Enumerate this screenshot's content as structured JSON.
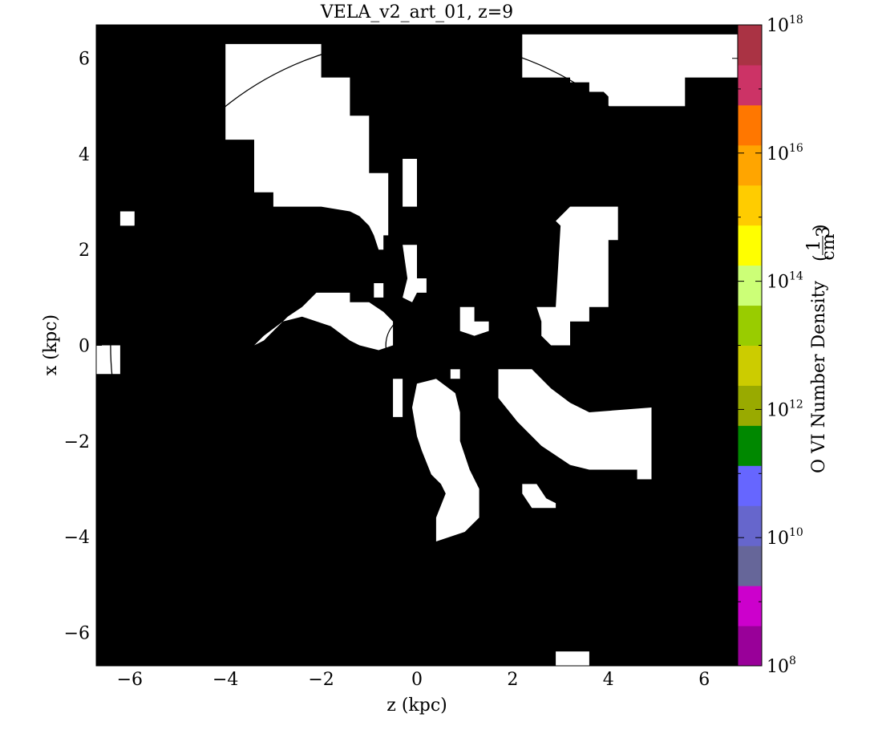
{
  "chart_data": {
    "type": "heatmap",
    "title": "VELA_v2_art_01, z=9",
    "xlabel": "z  (kpc)",
    "ylabel": "x  (kpc)",
    "xlim": [
      -6.7,
      6.7
    ],
    "ylim": [
      -6.7,
      6.7
    ],
    "x_ticks": [
      -6,
      -4,
      -2,
      0,
      2,
      4,
      6
    ],
    "y_ticks": [
      -6,
      -4,
      -2,
      0,
      2,
      4,
      6
    ],
    "x_tick_labels": [
      "−6",
      "−4",
      "−2",
      "0",
      "2",
      "4",
      "6"
    ],
    "y_tick_labels": [
      "−6",
      "−4",
      "−2",
      "0",
      "2",
      "4",
      "6"
    ],
    "background_color": "#000000",
    "region_color": "#ffffff",
    "circles": [
      {
        "cx": 0,
        "cy": 0,
        "r": 0.65
      },
      {
        "cx": 0,
        "cy": 0,
        "r": 6.4
      }
    ],
    "regions": [
      [
        [
          -4.0,
          6.3
        ],
        [
          -2.0,
          6.3
        ],
        [
          -2.0,
          5.6
        ],
        [
          -1.4,
          5.6
        ],
        [
          -1.4,
          4.8
        ],
        [
          -1.0,
          4.8
        ],
        [
          -1.0,
          3.6
        ],
        [
          -0.6,
          3.6
        ],
        [
          -0.6,
          2.3
        ],
        [
          -0.7,
          2.3
        ],
        [
          -0.7,
          2.0
        ],
        [
          -0.8,
          2.0
        ],
        [
          -0.9,
          2.3
        ],
        [
          -1.0,
          2.5
        ],
        [
          -1.2,
          2.7
        ],
        [
          -1.4,
          2.8
        ],
        [
          -2.0,
          2.9
        ],
        [
          -3.0,
          2.9
        ],
        [
          -3.0,
          3.2
        ],
        [
          -3.4,
          3.2
        ],
        [
          -3.4,
          4.3
        ],
        [
          -4.0,
          4.3
        ]
      ],
      [
        [
          2.2,
          6.5
        ],
        [
          6.7,
          6.5
        ],
        [
          6.7,
          5.6
        ],
        [
          5.6,
          5.6
        ],
        [
          5.6,
          5.0
        ],
        [
          4.0,
          5.0
        ],
        [
          4.0,
          5.2
        ],
        [
          3.9,
          5.3
        ],
        [
          3.6,
          5.3
        ],
        [
          3.6,
          5.5
        ],
        [
          3.2,
          5.5
        ],
        [
          3.2,
          5.6
        ],
        [
          2.2,
          5.6
        ]
      ],
      [
        [
          -0.3,
          3.9
        ],
        [
          0.0,
          3.9
        ],
        [
          0.0,
          2.9
        ],
        [
          -0.3,
          2.9
        ]
      ],
      [
        [
          -6.2,
          2.8
        ],
        [
          -5.9,
          2.8
        ],
        [
          -5.9,
          2.5
        ],
        [
          -6.2,
          2.5
        ]
      ],
      [
        [
          -6.7,
          0.0
        ],
        [
          -6.2,
          0.0
        ],
        [
          -6.2,
          -0.6
        ],
        [
          -6.7,
          -0.6
        ]
      ],
      [
        [
          -0.3,
          2.1
        ],
        [
          0.0,
          2.1
        ],
        [
          0.0,
          1.4
        ],
        [
          0.2,
          1.4
        ],
        [
          0.2,
          1.1
        ],
        [
          0.0,
          1.1
        ],
        [
          -0.1,
          0.9
        ],
        [
          -0.3,
          1.0
        ],
        [
          -0.2,
          1.4
        ]
      ],
      [
        [
          -3.4,
          0.0
        ],
        [
          -3.2,
          0.1
        ],
        [
          -3.0,
          0.3
        ],
        [
          -2.7,
          0.6
        ],
        [
          -2.4,
          0.8
        ],
        [
          -2.1,
          1.1
        ],
        [
          -1.4,
          1.1
        ],
        [
          -1.4,
          0.9
        ],
        [
          -1.0,
          0.9
        ],
        [
          -0.7,
          0.7
        ],
        [
          -0.5,
          0.5
        ],
        [
          -0.5,
          0.0
        ],
        [
          -0.8,
          -0.1
        ],
        [
          -1.2,
          0.0
        ],
        [
          -1.4,
          0.1
        ],
        [
          -1.8,
          0.4
        ],
        [
          -2.4,
          0.6
        ],
        [
          -2.8,
          0.5
        ],
        [
          -3.2,
          0.2
        ]
      ],
      [
        [
          3.2,
          2.9
        ],
        [
          4.2,
          2.9
        ],
        [
          4.2,
          2.2
        ],
        [
          4.0,
          2.2
        ],
        [
          4.0,
          0.8
        ],
        [
          3.6,
          0.8
        ],
        [
          3.6,
          0.5
        ],
        [
          3.2,
          0.5
        ],
        [
          3.2,
          0.0
        ],
        [
          2.8,
          0.0
        ],
        [
          2.6,
          0.2
        ],
        [
          2.6,
          0.5
        ],
        [
          2.5,
          0.8
        ],
        [
          2.9,
          0.8
        ],
        [
          3.0,
          2.5
        ],
        [
          2.9,
          2.6
        ]
      ],
      [
        [
          0.9,
          0.8
        ],
        [
          1.2,
          0.8
        ],
        [
          1.2,
          0.5
        ],
        [
          1.5,
          0.5
        ],
        [
          1.5,
          0.3
        ],
        [
          1.2,
          0.2
        ],
        [
          0.9,
          0.3
        ],
        [
          0.9,
          0.5
        ]
      ],
      [
        [
          0.0,
          -0.8
        ],
        [
          0.4,
          -0.7
        ],
        [
          0.8,
          -1.0
        ],
        [
          0.9,
          -1.4
        ],
        [
          0.9,
          -2.0
        ],
        [
          1.0,
          -2.3
        ],
        [
          1.1,
          -2.6
        ],
        [
          1.3,
          -3.0
        ],
        [
          1.3,
          -3.6
        ],
        [
          1.0,
          -3.9
        ],
        [
          0.4,
          -4.1
        ],
        [
          0.4,
          -3.6
        ],
        [
          0.6,
          -3.1
        ],
        [
          0.5,
          -2.9
        ],
        [
          0.3,
          -2.7
        ],
        [
          0.1,
          -2.2
        ],
        [
          0.0,
          -1.9
        ],
        [
          -0.1,
          -1.3
        ]
      ],
      [
        [
          1.7,
          -0.5
        ],
        [
          2.4,
          -0.5
        ],
        [
          2.8,
          -0.9
        ],
        [
          3.2,
          -1.2
        ],
        [
          3.6,
          -1.4
        ],
        [
          4.9,
          -1.3
        ],
        [
          4.9,
          -2.8
        ],
        [
          4.6,
          -2.8
        ],
        [
          4.6,
          -2.6
        ],
        [
          3.6,
          -2.6
        ],
        [
          3.2,
          -2.5
        ],
        [
          2.6,
          -2.1
        ],
        [
          2.1,
          -1.6
        ],
        [
          1.7,
          -1.1
        ]
      ],
      [
        [
          2.2,
          -2.9
        ],
        [
          2.5,
          -2.9
        ],
        [
          2.7,
          -3.2
        ],
        [
          2.9,
          -3.3
        ],
        [
          2.9,
          -3.4
        ],
        [
          2.4,
          -3.4
        ],
        [
          2.2,
          -3.1
        ]
      ],
      [
        [
          -0.5,
          -0.7
        ],
        [
          -0.3,
          -0.7
        ],
        [
          -0.3,
          -1.5
        ],
        [
          -0.5,
          -1.5
        ]
      ],
      [
        [
          2.9,
          -6.4
        ],
        [
          3.6,
          -6.4
        ],
        [
          3.6,
          -6.7
        ],
        [
          2.9,
          -6.7
        ]
      ],
      [
        [
          -0.9,
          1.3
        ],
        [
          -0.7,
          1.3
        ],
        [
          -0.7,
          1.0
        ],
        [
          -0.9,
          1.0
        ]
      ],
      [
        [
          0.7,
          -0.5
        ],
        [
          0.9,
          -0.5
        ],
        [
          0.9,
          -0.7
        ],
        [
          0.7,
          -0.7
        ]
      ]
    ],
    "colorbar": {
      "label": "O VI Number Density",
      "units_numerator": "1",
      "units_denominator": "cm",
      "units_exponent": "3",
      "min_exponent": 8,
      "max_exponent": 18,
      "tick_base": "10",
      "tick_exponents": [
        "8",
        "10",
        "12",
        "14",
        "16",
        "18"
      ],
      "colors": [
        "#990099",
        "#cc00cc",
        "#666699",
        "#6666cc",
        "#6666ff",
        "#008800",
        "#99aa00",
        "#cccc00",
        "#99cc00",
        "#ccff77",
        "#ffff00",
        "#ffcc00",
        "#ffa500",
        "#ff7700",
        "#cc3366",
        "#aa3344"
      ]
    }
  }
}
